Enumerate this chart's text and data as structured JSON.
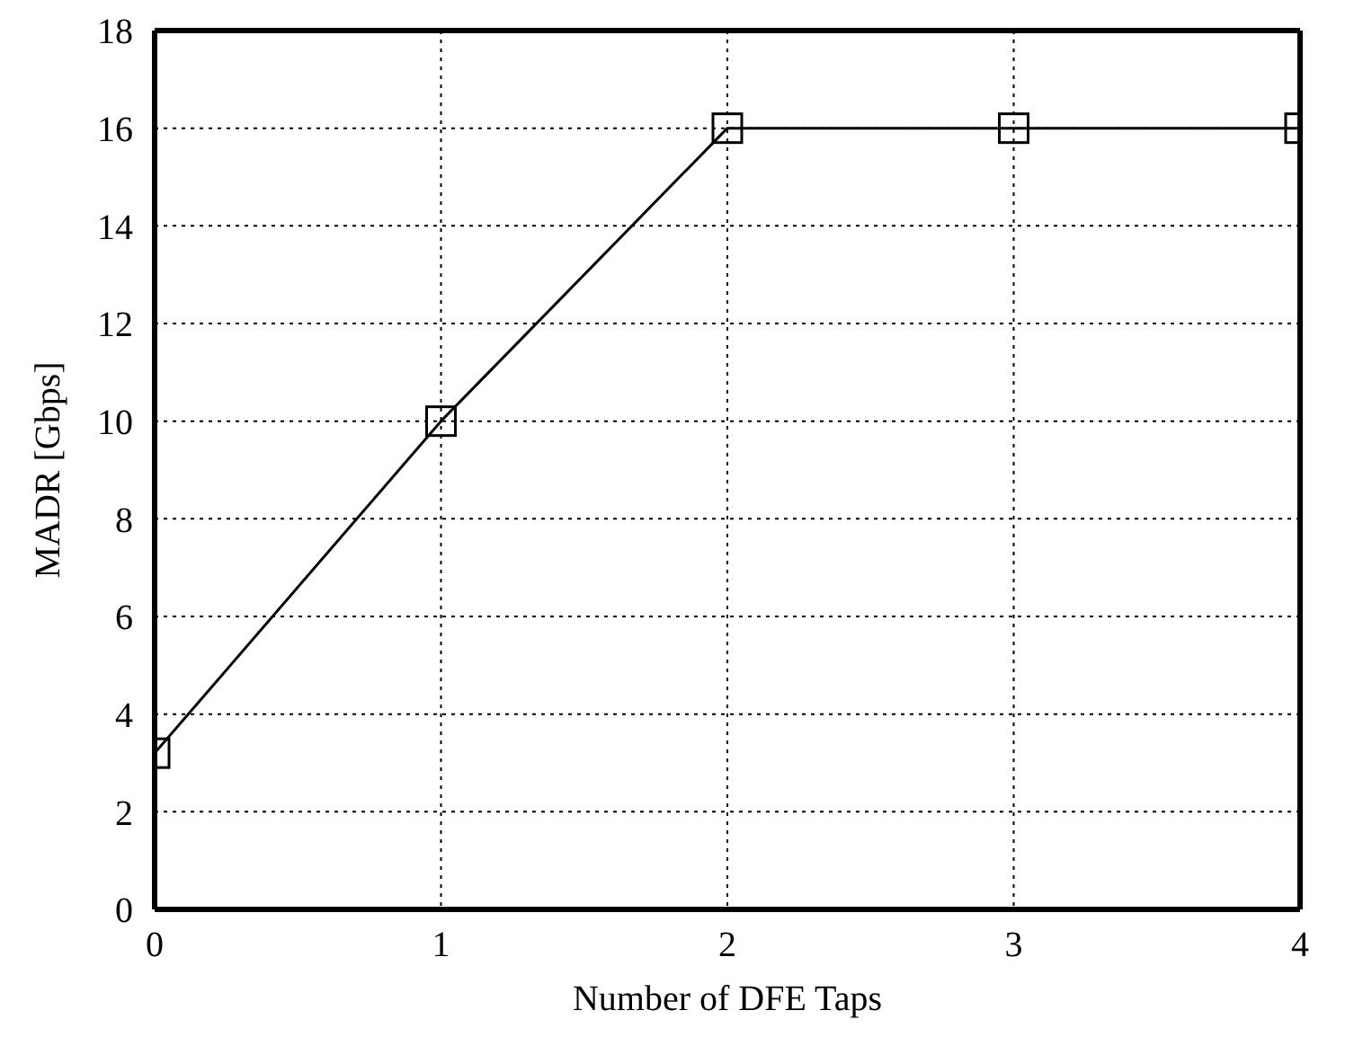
{
  "chart_data": {
    "type": "line",
    "xlabel": "Number of DFE Taps",
    "ylabel": "MADR [Gbps]",
    "x": [
      0,
      1,
      2,
      3,
      4
    ],
    "series": [
      {
        "color": "#000000",
        "values": [
          3.2,
          10,
          16,
          16,
          16
        ]
      }
    ],
    "xlim": [
      0,
      4
    ],
    "xticks": [
      0,
      1,
      2,
      3,
      4
    ],
    "ylim": [
      0,
      18
    ],
    "yticks": [
      0,
      2,
      4,
      6,
      8,
      10,
      12,
      14,
      16,
      18
    ],
    "grid": true,
    "marker": "square",
    "line_style": "solid"
  }
}
